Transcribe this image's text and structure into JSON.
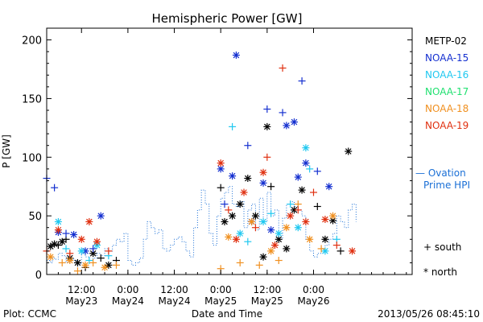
{
  "chart_data": {
    "type": "scatter",
    "title": "Hemispheric Power [GW]",
    "ylabel": "P [GW]",
    "xlabel": "Date and Time",
    "ylim": [
      0,
      210
    ],
    "yticks": [
      0,
      50,
      100,
      150,
      200
    ],
    "xlim": [
      0,
      94.5
    ],
    "x_units": "hours since 2013/05/23 03:00 (axis shown as time of day + date)",
    "xticks": [
      {
        "x": 9,
        "time": "12:00",
        "date": "May23"
      },
      {
        "x": 21,
        "time": "0:00",
        "date": "May24"
      },
      {
        "x": 33,
        "time": "12:00",
        "date": "May24"
      },
      {
        "x": 45,
        "time": "0:00",
        "date": "May25"
      },
      {
        "x": 57,
        "time": "12:00",
        "date": "May25"
      },
      {
        "x": 69,
        "time": "0:00",
        "date": "May26"
      }
    ],
    "legend": {
      "placement": "right",
      "entries": [
        {
          "name": "METP-02",
          "color": "#000000"
        },
        {
          "name": "NOAA-15",
          "color": "#1530d0"
        },
        {
          "name": "NOAA-16",
          "color": "#20c8f0"
        },
        {
          "name": "NOAA-17",
          "color": "#20e070"
        },
        {
          "name": "NOAA-18",
          "color": "#f09020"
        },
        {
          "name": "NOAA-19",
          "color": "#e03010"
        }
      ],
      "ovation_label": [
        "— Ovation",
        "Prime HPI"
      ],
      "ovation_color": "#1a6fd6",
      "south_label": "+ south",
      "north_label": "* north"
    },
    "ovation_line": {
      "name": "Ovation Prime HPI",
      "x": [
        0,
        1,
        1.5,
        2,
        3,
        4,
        5,
        6,
        7,
        8,
        9,
        10,
        11,
        12,
        13,
        14,
        15,
        16,
        17,
        18,
        19,
        20,
        21,
        22,
        23,
        24,
        25,
        26,
        27,
        28,
        29,
        30,
        31,
        32,
        33,
        34,
        35,
        36,
        37,
        38,
        39,
        40,
        41,
        42,
        43,
        44,
        45,
        46,
        47,
        48,
        49,
        50,
        51,
        52,
        53,
        54,
        55,
        56,
        57,
        58,
        59,
        60,
        61,
        62,
        63,
        64,
        65,
        66,
        67,
        68,
        69,
        70,
        71,
        72,
        73,
        74,
        75,
        76,
        77,
        78,
        79,
        80
      ],
      "values": [
        12,
        10,
        15,
        13,
        18,
        16,
        10,
        14,
        12,
        9,
        20,
        15,
        12,
        14,
        18,
        16,
        22,
        20,
        25,
        30,
        28,
        35,
        12,
        8,
        10,
        14,
        30,
        45,
        40,
        35,
        38,
        22,
        20,
        25,
        30,
        32,
        28,
        20,
        15,
        40,
        55,
        72,
        60,
        35,
        25,
        50,
        65,
        70,
        75,
        60,
        58,
        62,
        40,
        55,
        60,
        38,
        65,
        45,
        70,
        50,
        55,
        30,
        48,
        60,
        62,
        58,
        55,
        50,
        30,
        20,
        15,
        18,
        22,
        25,
        30,
        35,
        50,
        45,
        40,
        55,
        60,
        45
      ]
    },
    "series": [
      {
        "name": "METP-02",
        "marker_color": "#000000",
        "points": [
          {
            "x": 1,
            "y": 24,
            "hem": "north"
          },
          {
            "x": 2,
            "y": 26,
            "hem": "north"
          },
          {
            "x": 3,
            "y": 25,
            "hem": "south"
          },
          {
            "x": 4,
            "y": 28,
            "hem": "north"
          },
          {
            "x": 5,
            "y": 30,
            "hem": "south"
          },
          {
            "x": 6,
            "y": 14,
            "hem": "north"
          },
          {
            "x": 8,
            "y": 10,
            "hem": "north"
          },
          {
            "x": 10,
            "y": 6,
            "hem": "south"
          },
          {
            "x": 12,
            "y": 18,
            "hem": "north"
          },
          {
            "x": 14,
            "y": 14,
            "hem": "south"
          },
          {
            "x": 16,
            "y": 8,
            "hem": "north"
          },
          {
            "x": 18,
            "y": 12,
            "hem": "south"
          },
          {
            "x": 45,
            "y": 74,
            "hem": "south"
          },
          {
            "x": 46,
            "y": 45,
            "hem": "north"
          },
          {
            "x": 48,
            "y": 50,
            "hem": "north"
          },
          {
            "x": 50,
            "y": 60,
            "hem": "north"
          },
          {
            "x": 52,
            "y": 82,
            "hem": "north"
          },
          {
            "x": 54,
            "y": 50,
            "hem": "north"
          },
          {
            "x": 56,
            "y": 15,
            "hem": "north"
          },
          {
            "x": 57,
            "y": 126,
            "hem": "north"
          },
          {
            "x": 58,
            "y": 75,
            "hem": "south"
          },
          {
            "x": 60,
            "y": 30,
            "hem": "north"
          },
          {
            "x": 62,
            "y": 22,
            "hem": "north"
          },
          {
            "x": 64,
            "y": 55,
            "hem": "north"
          },
          {
            "x": 66,
            "y": 72,
            "hem": "north"
          },
          {
            "x": 70,
            "y": 58,
            "hem": "south"
          },
          {
            "x": 72,
            "y": 30,
            "hem": "north"
          },
          {
            "x": 74,
            "y": 46,
            "hem": "north"
          },
          {
            "x": 78,
            "y": 105,
            "hem": "north"
          },
          {
            "x": 76,
            "y": 20,
            "hem": "south"
          }
        ]
      },
      {
        "name": "NOAA-15",
        "marker_color": "#1530d0",
        "points": [
          {
            "x": 0,
            "y": 82,
            "hem": "south"
          },
          {
            "x": 2,
            "y": 74,
            "hem": "south"
          },
          {
            "x": 3,
            "y": 36,
            "hem": "north"
          },
          {
            "x": 5,
            "y": 35,
            "hem": "south"
          },
          {
            "x": 7,
            "y": 34,
            "hem": "north"
          },
          {
            "x": 10,
            "y": 20,
            "hem": "north"
          },
          {
            "x": 12,
            "y": 22,
            "hem": "south"
          },
          {
            "x": 14,
            "y": 50,
            "hem": "north"
          },
          {
            "x": 45,
            "y": 90,
            "hem": "north"
          },
          {
            "x": 46,
            "y": 60,
            "hem": "south"
          },
          {
            "x": 48,
            "y": 84,
            "hem": "north"
          },
          {
            "x": 49,
            "y": 187,
            "hem": "north"
          },
          {
            "x": 52,
            "y": 110,
            "hem": "south"
          },
          {
            "x": 53,
            "y": 45,
            "hem": "north"
          },
          {
            "x": 56,
            "y": 78,
            "hem": "north"
          },
          {
            "x": 57,
            "y": 141,
            "hem": "south"
          },
          {
            "x": 58,
            "y": 38,
            "hem": "north"
          },
          {
            "x": 61,
            "y": 138,
            "hem": "south"
          },
          {
            "x": 62,
            "y": 127,
            "hem": "north"
          },
          {
            "x": 64,
            "y": 130,
            "hem": "north"
          },
          {
            "x": 65,
            "y": 83,
            "hem": "north"
          },
          {
            "x": 66,
            "y": 165,
            "hem": "south"
          },
          {
            "x": 67,
            "y": 95,
            "hem": "north"
          },
          {
            "x": 70,
            "y": 88,
            "hem": "south"
          },
          {
            "x": 73,
            "y": 75,
            "hem": "north"
          }
        ]
      },
      {
        "name": "NOAA-16",
        "marker_color": "#20c8f0",
        "points": [
          {
            "x": 3,
            "y": 45,
            "hem": "north"
          },
          {
            "x": 5,
            "y": 22,
            "hem": "south"
          },
          {
            "x": 9,
            "y": 20,
            "hem": "north"
          },
          {
            "x": 11,
            "y": 12,
            "hem": "south"
          },
          {
            "x": 13,
            "y": 25,
            "hem": "north"
          },
          {
            "x": 16,
            "y": 16,
            "hem": "south"
          },
          {
            "x": 48,
            "y": 126,
            "hem": "south"
          },
          {
            "x": 50,
            "y": 35,
            "hem": "north"
          },
          {
            "x": 52,
            "y": 28,
            "hem": "south"
          },
          {
            "x": 56,
            "y": 45,
            "hem": "north"
          },
          {
            "x": 58,
            "y": 52,
            "hem": "south"
          },
          {
            "x": 60,
            "y": 35,
            "hem": "north"
          },
          {
            "x": 63,
            "y": 60,
            "hem": "south"
          },
          {
            "x": 65,
            "y": 40,
            "hem": "north"
          },
          {
            "x": 67,
            "y": 108,
            "hem": "north"
          },
          {
            "x": 68,
            "y": 90,
            "hem": "south"
          },
          {
            "x": 72,
            "y": 20,
            "hem": "north"
          },
          {
            "x": 75,
            "y": 30,
            "hem": "south"
          }
        ]
      },
      {
        "name": "NOAA-17",
        "marker_color": "#20e070",
        "points": []
      },
      {
        "name": "NOAA-18",
        "marker_color": "#f09020",
        "points": [
          {
            "x": 1,
            "y": 15,
            "hem": "north"
          },
          {
            "x": 4,
            "y": 10,
            "hem": "south"
          },
          {
            "x": 6,
            "y": 12,
            "hem": "north"
          },
          {
            "x": 8,
            "y": 3,
            "hem": "south"
          },
          {
            "x": 10,
            "y": 8,
            "hem": "north"
          },
          {
            "x": 12,
            "y": 10,
            "hem": "south"
          },
          {
            "x": 15,
            "y": 6,
            "hem": "north"
          },
          {
            "x": 18,
            "y": 8,
            "hem": "south"
          },
          {
            "x": 45,
            "y": 5,
            "hem": "south"
          },
          {
            "x": 47,
            "y": 32,
            "hem": "north"
          },
          {
            "x": 50,
            "y": 10,
            "hem": "south"
          },
          {
            "x": 53,
            "y": 45,
            "hem": "north"
          },
          {
            "x": 55,
            "y": 8,
            "hem": "south"
          },
          {
            "x": 58,
            "y": 20,
            "hem": "north"
          },
          {
            "x": 60,
            "y": 12,
            "hem": "south"
          },
          {
            "x": 62,
            "y": 40,
            "hem": "north"
          },
          {
            "x": 65,
            "y": 60,
            "hem": "south"
          },
          {
            "x": 68,
            "y": 30,
            "hem": "north"
          },
          {
            "x": 71,
            "y": 22,
            "hem": "south"
          },
          {
            "x": 74,
            "y": 50,
            "hem": "north"
          }
        ]
      },
      {
        "name": "NOAA-19",
        "marker_color": "#e03010",
        "points": [
          {
            "x": 0,
            "y": 20,
            "hem": "south"
          },
          {
            "x": 3,
            "y": 38,
            "hem": "north"
          },
          {
            "x": 6,
            "y": 18,
            "hem": "south"
          },
          {
            "x": 9,
            "y": 30,
            "hem": "north"
          },
          {
            "x": 11,
            "y": 45,
            "hem": "north"
          },
          {
            "x": 13,
            "y": 28,
            "hem": "north"
          },
          {
            "x": 16,
            "y": 20,
            "hem": "south"
          },
          {
            "x": 45,
            "y": 95,
            "hem": "north"
          },
          {
            "x": 47,
            "y": 55,
            "hem": "south"
          },
          {
            "x": 49,
            "y": 30,
            "hem": "north"
          },
          {
            "x": 51,
            "y": 70,
            "hem": "north"
          },
          {
            "x": 54,
            "y": 40,
            "hem": "south"
          },
          {
            "x": 56,
            "y": 87,
            "hem": "north"
          },
          {
            "x": 57,
            "y": 100,
            "hem": "south"
          },
          {
            "x": 59,
            "y": 25,
            "hem": "north"
          },
          {
            "x": 61,
            "y": 176,
            "hem": "south"
          },
          {
            "x": 63,
            "y": 50,
            "hem": "north"
          },
          {
            "x": 65,
            "y": 55,
            "hem": "south"
          },
          {
            "x": 67,
            "y": 45,
            "hem": "north"
          },
          {
            "x": 69,
            "y": 70,
            "hem": "south"
          },
          {
            "x": 72,
            "y": 47,
            "hem": "north"
          },
          {
            "x": 75,
            "y": 25,
            "hem": "south"
          },
          {
            "x": 79,
            "y": 20,
            "hem": "north"
          }
        ]
      }
    ]
  },
  "footer": {
    "plot_source": "Plot: CCMC",
    "timestamp": "2013/05/26 08:45:10"
  }
}
